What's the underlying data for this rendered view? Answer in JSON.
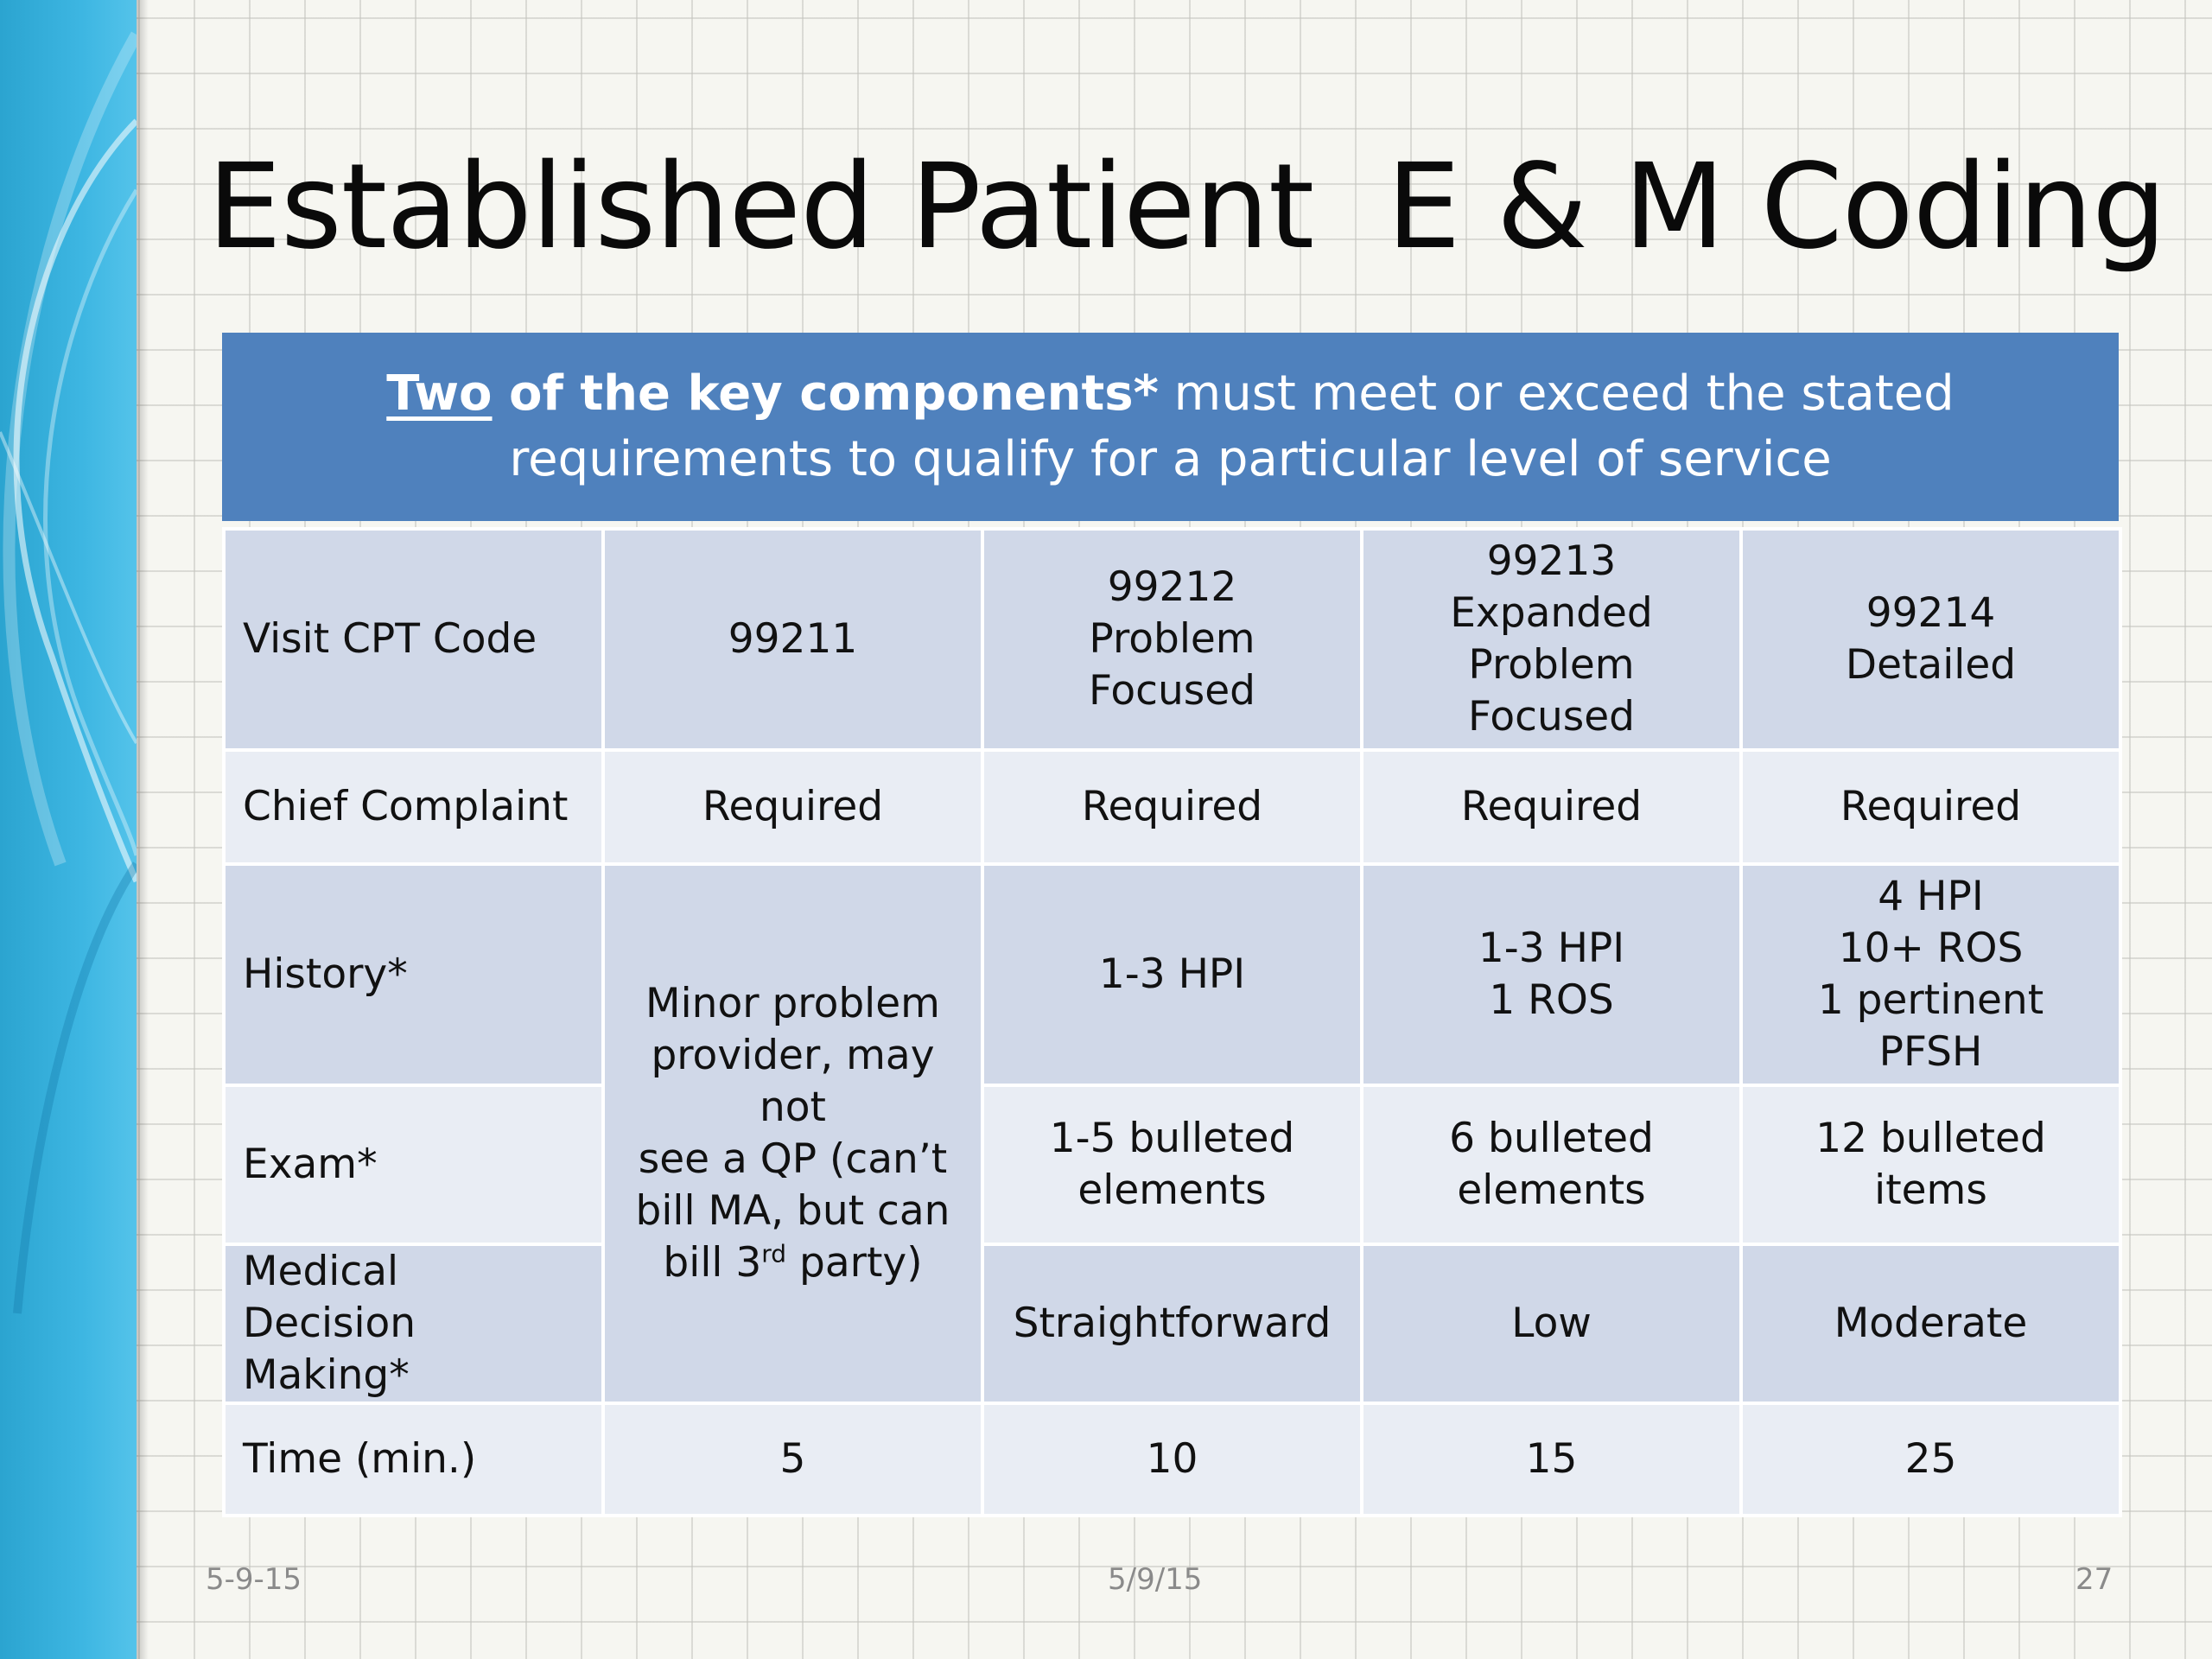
{
  "slide": {
    "title": "Established Patient  E & M Coding",
    "banner": {
      "underlined_word": "Two",
      "bold_text": " of the key components*",
      "line1_rest": " must meet or exceed the stated",
      "line2": "requirements to qualify for a particular level of service"
    },
    "colors": {
      "banner_blue": "#4f81bd",
      "row_dark": "#d0d8e8",
      "row_light": "#e9edf4",
      "side_band": "#3db6e2"
    },
    "table": {
      "header_row": {
        "label": "Visit CPT Code",
        "c1": [
          "99211"
        ],
        "c2": [
          "99212",
          "Problem Focused"
        ],
        "c3": [
          "99213",
          "Expanded",
          "Problem Focused"
        ],
        "c4": [
          "99214",
          "Detailed"
        ]
      },
      "chief_complaint": {
        "label": "Chief Complaint",
        "c1": "Required",
        "c2": "Required",
        "c3": "Required",
        "c4": "Required"
      },
      "merged_99211_note": {
        "lines": [
          "Minor problem",
          "provider, may not",
          "see a QP (can’t",
          "bill MA, but can"
        ],
        "last_line_before": "bill 3",
        "last_line_sup": "rd",
        "last_line_after": " party)"
      },
      "history": {
        "label": "History*",
        "c2": [
          "1-3 HPI"
        ],
        "c3": [
          "1-3 HPI",
          "1 ROS"
        ],
        "c4": [
          "4 HPI",
          "10+ ROS",
          "1 pertinent PFSH"
        ]
      },
      "exam": {
        "label": "Exam*",
        "c2": [
          "1-5 bulleted",
          "elements"
        ],
        "c3": [
          "6 bulleted",
          "elements"
        ],
        "c4": [
          "12 bulleted items"
        ]
      },
      "mdm": {
        "label": [
          "Medical Decision",
          "Making*"
        ],
        "c2": "Straightforward",
        "c3": "Low",
        "c4": "Moderate"
      },
      "time": {
        "label": "Time (min.)",
        "c1": "5",
        "c2": "10",
        "c3": "15",
        "c4": "25"
      }
    },
    "footer": {
      "left": "5-9-15",
      "center": "5/9/15",
      "page_number": "27"
    }
  }
}
